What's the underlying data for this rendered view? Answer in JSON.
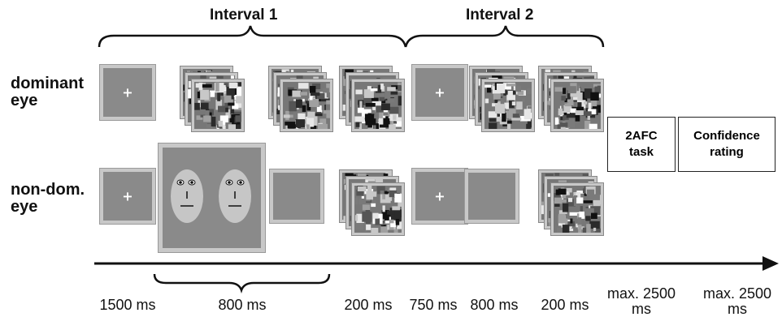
{
  "intervals": {
    "interval1": "Interval 1",
    "interval2": "Interval 2"
  },
  "eyes": {
    "dominant": "dominant eye",
    "nondominant": "non-dom. eye"
  },
  "fixation_symbol": "+",
  "tasks": {
    "afc": "2AFC task",
    "confidence": "Confidence rating"
  },
  "timings": {
    "t1": "1500 ms",
    "t2": "800 ms",
    "t3": "200 ms",
    "t4": "750 ms",
    "t5": "800 ms",
    "t6": "200 ms",
    "t7": "max. 2500 ms",
    "t8": "max. 2500 ms"
  },
  "colors": {
    "stimulus_gray": "#8a8a8a",
    "frame_gray": "#c8c8c8",
    "face_gray": "#c6c6c6",
    "ink": "#111111"
  },
  "icons": {
    "face": "face-icon",
    "mondrian": "mondrian-mask-icon",
    "arrow": "time-arrow-icon"
  }
}
